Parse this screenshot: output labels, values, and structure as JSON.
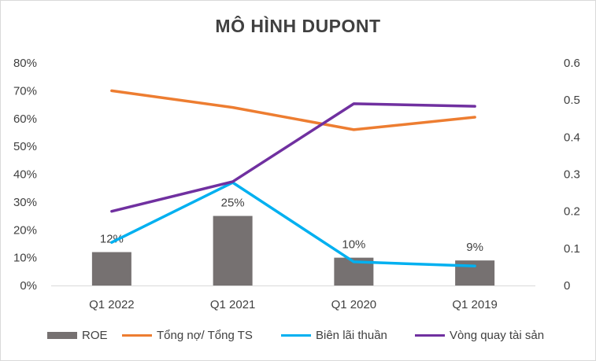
{
  "chart_data": {
    "type": "bar+line",
    "title": "MÔ HÌNH DUPONT",
    "categories": [
      "Q1 2022",
      "Q1 2021",
      "Q1 2020",
      "Q1 2019"
    ],
    "y_left": {
      "ticks": [
        "0%",
        "10%",
        "20%",
        "30%",
        "40%",
        "50%",
        "60%",
        "70%",
        "80%"
      ],
      "range": [
        0,
        0.8
      ]
    },
    "y_right": {
      "ticks": [
        "0",
        "0.1",
        "0.2",
        "0.3",
        "0.4",
        "0.5",
        "0.6"
      ],
      "range": [
        0,
        0.6
      ]
    },
    "series": [
      {
        "name": "ROE",
        "kind": "bar",
        "axis": "left",
        "values": [
          0.12,
          0.25,
          0.1,
          0.09
        ],
        "labels": [
          "12%",
          "25%",
          "10%",
          "9%"
        ],
        "color": "#767171"
      },
      {
        "name": "Tổng nợ/ Tổng TS",
        "kind": "line",
        "axis": "left",
        "values": [
          0.7,
          0.64,
          0.56,
          0.605
        ],
        "color": "#ED7D31"
      },
      {
        "name": "Biên lãi thuần",
        "kind": "line",
        "axis": "left",
        "values": [
          0.155,
          0.37,
          0.085,
          0.07
        ],
        "color": "#00B0F0"
      },
      {
        "name": "Vòng quay tài sản",
        "kind": "line",
        "axis": "right",
        "values": [
          0.2,
          0.28,
          0.49,
          0.483
        ],
        "color": "#7030A0"
      }
    ],
    "grid": false,
    "legend_position": "bottom"
  }
}
